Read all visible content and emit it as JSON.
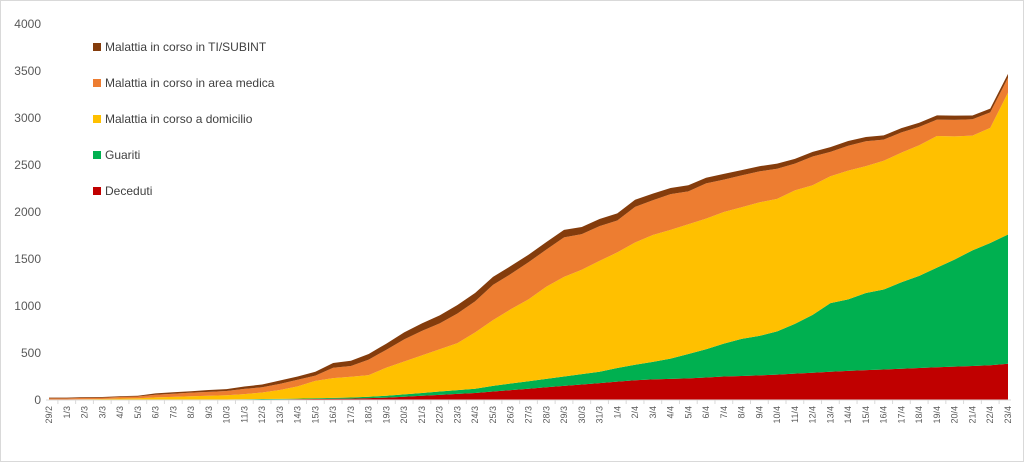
{
  "chart_data": {
    "type": "area",
    "stacked": true,
    "title": "",
    "xlabel": "",
    "ylabel": "",
    "ylim": [
      0,
      4000
    ],
    "yticks": [
      0,
      500,
      1000,
      1500,
      2000,
      2500,
      3000,
      3500,
      4000
    ],
    "grid": false,
    "legend_position": "top-left",
    "categories": [
      "29/2",
      "1/3",
      "2/3",
      "3/3",
      "4/3",
      "5/3",
      "6/3",
      "7/3",
      "8/3",
      "9/3",
      "10/3",
      "11/3",
      "12/3",
      "13/3",
      "14/3",
      "15/3",
      "16/3",
      "17/3",
      "18/3",
      "19/3",
      "20/3",
      "21/3",
      "22/3",
      "23/3",
      "24/3",
      "25/3",
      "26/3",
      "27/3",
      "28/3",
      "29/3",
      "30/3",
      "31/3",
      "1/4",
      "2/4",
      "3/4",
      "4/4",
      "5/4",
      "6/4",
      "7/4",
      "8/4",
      "9/4",
      "10/4",
      "11/4",
      "12/4",
      "13/4",
      "14/4",
      "15/4",
      "16/4",
      "17/4",
      "18/4",
      "19/4",
      "20/4",
      "21/4",
      "22/4",
      "23/4"
    ],
    "series": [
      {
        "name": "Deceduti",
        "color": "#c00000",
        "values": [
          0,
          0,
          0,
          0,
          1,
          1,
          2,
          2,
          3,
          3,
          4,
          5,
          6,
          7,
          9,
          11,
          13,
          15,
          20,
          25,
          35,
          45,
          55,
          65,
          75,
          90,
          105,
          120,
          135,
          150,
          165,
          180,
          195,
          210,
          220,
          225,
          230,
          240,
          250,
          255,
          262,
          270,
          280,
          290,
          300,
          310,
          318,
          325,
          332,
          340,
          348,
          355,
          362,
          370,
          385
        ]
      },
      {
        "name": "Guariti",
        "color": "#00b050",
        "values": [
          0,
          0,
          0,
          0,
          0,
          0,
          1,
          1,
          2,
          2,
          2,
          3,
          4,
          5,
          6,
          8,
          10,
          12,
          15,
          20,
          25,
          30,
          35,
          40,
          45,
          60,
          70,
          80,
          90,
          100,
          110,
          120,
          145,
          165,
          185,
          215,
          260,
          300,
          350,
          395,
          420,
          460,
          530,
          615,
          730,
          760,
          820,
          850,
          920,
          980,
          1060,
          1140,
          1230,
          1300,
          1375
        ]
      },
      {
        "name": "Malattia in corso a domicilio",
        "color": "#ffc000",
        "values": [
          5,
          5,
          8,
          10,
          15,
          18,
          25,
          30,
          35,
          40,
          45,
          55,
          70,
          95,
          130,
          185,
          210,
          220,
          230,
          300,
          350,
          400,
          450,
          500,
          600,
          700,
          790,
          870,
          980,
          1060,
          1110,
          1180,
          1230,
          1300,
          1350,
          1370,
          1380,
          1390,
          1400,
          1400,
          1420,
          1410,
          1420,
          1380,
          1350,
          1370,
          1350,
          1370,
          1380,
          1390,
          1400,
          1310,
          1220,
          1225,
          1510
        ]
      },
      {
        "name": "Malattia in corso in area medica",
        "color": "#ed7d31",
        "values": [
          12,
          12,
          14,
          14,
          16,
          18,
          28,
          34,
          38,
          42,
          45,
          55,
          55,
          65,
          70,
          55,
          110,
          115,
          165,
          190,
          235,
          260,
          275,
          315,
          330,
          375,
          375,
          395,
          395,
          420,
          380,
          370,
          340,
          380,
          370,
          380,
          350,
          375,
          345,
          340,
          330,
          320,
          285,
          305,
          260,
          265,
          265,
          225,
          215,
          195,
          175,
          175,
          175,
          165,
          160
        ]
      },
      {
        "name": "Malattia in corso in TI/SUBINT",
        "color": "#843c0c",
        "values": [
          8,
          8,
          8,
          8,
          8,
          8,
          14,
          15,
          15,
          20,
          20,
          25,
          30,
          35,
          35,
          42,
          50,
          55,
          60,
          65,
          75,
          80,
          85,
          90,
          90,
          85,
          85,
          80,
          80,
          80,
          75,
          75,
          75,
          75,
          70,
          65,
          65,
          60,
          60,
          55,
          55,
          55,
          50,
          50,
          50,
          50,
          45,
          45,
          45,
          45,
          45,
          45,
          40,
          40,
          40
        ]
      }
    ],
    "legend_order": [
      "Malattia in corso in TI/SUBINT",
      "Malattia in corso in area medica",
      "Malattia in corso a domicilio",
      "Guariti",
      "Deceduti"
    ]
  }
}
